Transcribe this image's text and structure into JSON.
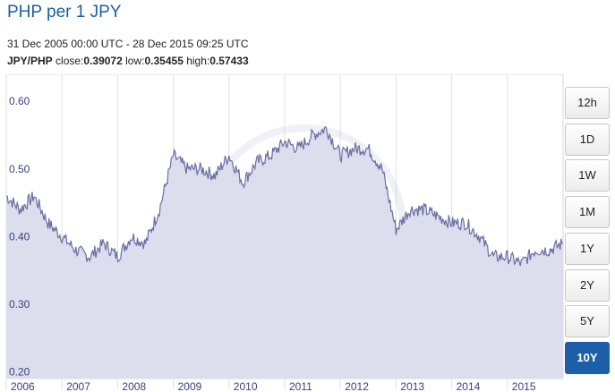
{
  "header": {
    "title": "PHP per 1 JPY",
    "range": "31 Dec 2005 00:00 UTC - 28 Dec 2015 09:25 UTC",
    "pair": "JPY/PHP",
    "close_label": "close:",
    "close": "0.39072",
    "low_label": "low:",
    "low": "0.35455",
    "high_label": "high:",
    "high": "0.57433"
  },
  "timeframes": [
    {
      "label": "12h",
      "active": false
    },
    {
      "label": "1D",
      "active": false
    },
    {
      "label": "1W",
      "active": false
    },
    {
      "label": "1M",
      "active": false
    },
    {
      "label": "1Y",
      "active": false
    },
    {
      "label": "2Y",
      "active": false
    },
    {
      "label": "5Y",
      "active": false
    },
    {
      "label": "10Y",
      "active": true
    }
  ],
  "chart_data": {
    "type": "area",
    "title": "",
    "xlabel": "",
    "ylabel": "",
    "ylim": [
      0.19,
      0.64
    ],
    "yticks": [
      "0.20",
      "0.30",
      "0.40",
      "0.50",
      "0.60"
    ],
    "xticks": [
      "2006",
      "2007",
      "2008",
      "2009",
      "2010",
      "2011",
      "2012",
      "2013",
      "2014",
      "2015"
    ],
    "grid": true,
    "series": [
      {
        "x": [
          2006.0,
          2006.25,
          2006.5,
          2006.75,
          2007.0,
          2007.25,
          2007.5,
          2007.75,
          2008.0,
          2008.25,
          2008.5,
          2008.75,
          2009.0,
          2009.25,
          2009.5,
          2009.75,
          2010.0,
          2010.25,
          2010.5,
          2010.75,
          2011.0,
          2011.25,
          2011.5,
          2011.75,
          2012.0,
          2012.25,
          2012.5,
          2012.75,
          2013.0,
          2013.25,
          2013.5,
          2013.75,
          2014.0,
          2014.25,
          2014.5,
          2014.75,
          2015.0,
          2015.25,
          2015.5,
          2015.75,
          2016.0
        ],
        "y": [
          0.46,
          0.44,
          0.46,
          0.42,
          0.4,
          0.38,
          0.37,
          0.39,
          0.37,
          0.4,
          0.39,
          0.44,
          0.52,
          0.5,
          0.5,
          0.49,
          0.52,
          0.48,
          0.51,
          0.52,
          0.54,
          0.53,
          0.55,
          0.56,
          0.52,
          0.53,
          0.53,
          0.5,
          0.41,
          0.44,
          0.44,
          0.43,
          0.42,
          0.42,
          0.4,
          0.37,
          0.37,
          0.36,
          0.38,
          0.38,
          0.39
        ]
      }
    ]
  }
}
